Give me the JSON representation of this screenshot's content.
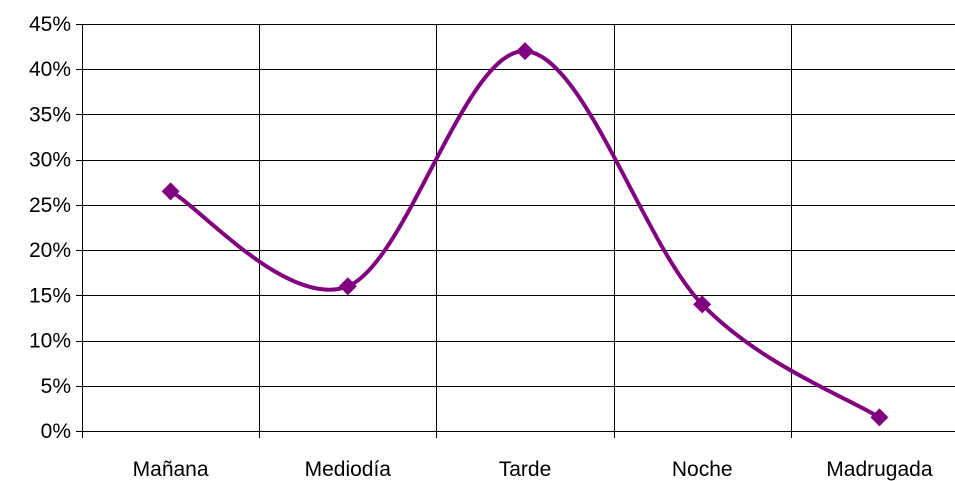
{
  "chart_data": {
    "type": "line",
    "smooth": true,
    "categories": [
      "Mañana",
      "Mediodía",
      "Tarde",
      "Noche",
      "Madrugada"
    ],
    "series": [
      {
        "values": [
          26.5,
          16,
          42,
          14,
          1.5
        ],
        "color": "#800080",
        "marker": "diamond"
      }
    ],
    "ylim": [
      0,
      45
    ],
    "yticks": [
      0,
      5,
      10,
      15,
      20,
      25,
      30,
      35,
      40,
      45
    ],
    "ytick_labels": [
      "0%",
      "5%",
      "10%",
      "15%",
      "20%",
      "25%",
      "30%",
      "35%",
      "40%",
      "45%"
    ],
    "grid": {
      "horizontal": true,
      "vertical": true
    },
    "legend": "none"
  }
}
